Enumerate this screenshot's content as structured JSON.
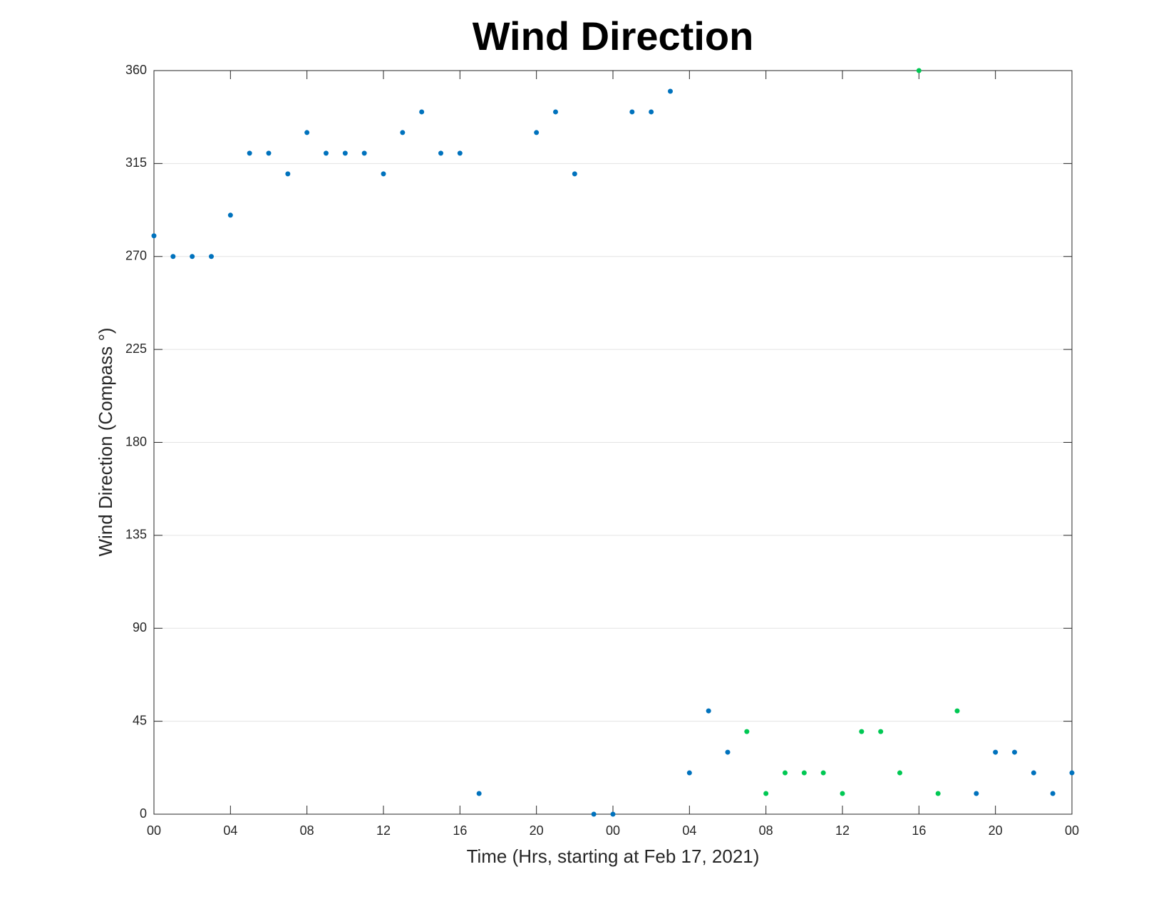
{
  "chart_data": {
    "type": "scatter",
    "title": "Wind Direction",
    "x_label": "Time (Hrs, starting at Feb 17, 2021)",
    "y_label": "Wind Direction (Compass °)",
    "xlim": [
      0,
      48
    ],
    "ylim": [
      0,
      360
    ],
    "xticks": [
      {
        "value": 0,
        "label": "00"
      },
      {
        "value": 4,
        "label": "04"
      },
      {
        "value": 8,
        "label": "08"
      },
      {
        "value": 12,
        "label": "12"
      },
      {
        "value": 16,
        "label": "16"
      },
      {
        "value": 20,
        "label": "20"
      },
      {
        "value": 24,
        "label": "00"
      },
      {
        "value": 28,
        "label": "04"
      },
      {
        "value": 32,
        "label": "08"
      },
      {
        "value": 36,
        "label": "12"
      },
      {
        "value": 40,
        "label": "16"
      },
      {
        "value": 44,
        "label": "20"
      },
      {
        "value": 48,
        "label": "00"
      }
    ],
    "yticks": [
      0,
      45,
      90,
      135,
      180,
      225,
      270,
      315,
      360
    ],
    "grid": true,
    "series": [
      {
        "color": "#0072bd",
        "x": [
          0,
          1,
          2,
          3,
          4,
          5,
          6,
          7,
          8,
          9,
          10,
          11,
          12,
          13,
          14,
          15,
          16,
          17,
          20,
          21,
          22,
          23,
          24,
          25,
          26,
          27,
          28,
          29,
          30,
          43,
          44,
          45,
          46,
          47,
          48
        ],
        "values": [
          280,
          270,
          270,
          270,
          290,
          320,
          320,
          310,
          330,
          320,
          320,
          320,
          310,
          330,
          340,
          320,
          320,
          10,
          330,
          340,
          310,
          0,
          0,
          340,
          340,
          350,
          20,
          50,
          30,
          10,
          30,
          30,
          20,
          10,
          20
        ]
      },
      {
        "color": "#00c853",
        "x": [
          31,
          32,
          33,
          34,
          35,
          36,
          37,
          38,
          39,
          40,
          41,
          42
        ],
        "values": [
          40,
          10,
          20,
          20,
          20,
          10,
          40,
          40,
          20,
          360,
          10,
          50
        ]
      }
    ]
  }
}
